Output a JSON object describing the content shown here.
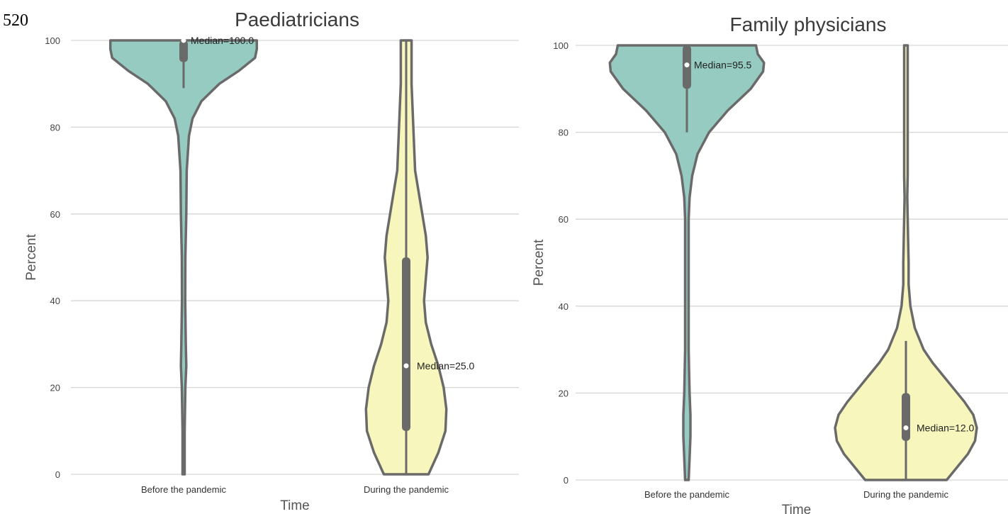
{
  "page_number": "520",
  "colors": {
    "before": "#96cbc2",
    "during": "#f7f7bd",
    "outline": "#6a6a6a",
    "grid": "#d6d6d6"
  },
  "chart_data": [
    {
      "type": "violin",
      "title": "Paediatricians",
      "xlabel": "Time",
      "ylabel": "Percent",
      "ylim": [
        0,
        100
      ],
      "yticks": [
        0,
        20,
        40,
        60,
        80,
        100
      ],
      "grid": true,
      "categories": [
        "Before the pandemic",
        "During the pandemic"
      ],
      "violins": [
        {
          "category": "Before the pandemic",
          "median": 100.0,
          "q1": 95,
          "q3": 100,
          "whisker_low": 89,
          "whisker_high": 100,
          "median_label": "Median=100.0",
          "density": [
            [
              0,
              0.012
            ],
            [
              10,
              0.012
            ],
            [
              20,
              0.02
            ],
            [
              25,
              0.03
            ],
            [
              30,
              0.025
            ],
            [
              40,
              0.018
            ],
            [
              50,
              0.02
            ],
            [
              60,
              0.03
            ],
            [
              70,
              0.035
            ],
            [
              78,
              0.06
            ],
            [
              82,
              0.1
            ],
            [
              86,
              0.2
            ],
            [
              90,
              0.4
            ],
            [
              93,
              0.62
            ],
            [
              96,
              0.8
            ],
            [
              98,
              0.82
            ],
            [
              100,
              0.82
            ]
          ]
        },
        {
          "category": "During the pandemic",
          "median": 25.0,
          "q1": 10,
          "q3": 50,
          "whisker_low": 0,
          "whisker_high": 100,
          "median_label": "Median=25.0",
          "density": [
            [
              0,
              0.25
            ],
            [
              5,
              0.36
            ],
            [
              10,
              0.44
            ],
            [
              15,
              0.45
            ],
            [
              20,
              0.42
            ],
            [
              25,
              0.36
            ],
            [
              30,
              0.28
            ],
            [
              35,
              0.22
            ],
            [
              40,
              0.2
            ],
            [
              45,
              0.22
            ],
            [
              50,
              0.24
            ],
            [
              55,
              0.22
            ],
            [
              60,
              0.18
            ],
            [
              70,
              0.1
            ],
            [
              80,
              0.08
            ],
            [
              90,
              0.06
            ],
            [
              100,
              0.06
            ]
          ]
        }
      ]
    },
    {
      "type": "violin",
      "title": "Family physicians",
      "xlabel": "Time",
      "ylabel": "Percent",
      "ylim": [
        0,
        100
      ],
      "yticks": [
        0,
        20,
        40,
        60,
        80,
        100
      ],
      "grid": true,
      "categories": [
        "Before the pandemic",
        "During the pandemic"
      ],
      "violins": [
        {
          "category": "Before the pandemic",
          "median": 95.5,
          "q1": 90,
          "q3": 100,
          "whisker_low": 80,
          "whisker_high": 100,
          "median_label": "Median=95.5",
          "density": [
            [
              0,
              0.02
            ],
            [
              5,
              0.03
            ],
            [
              10,
              0.04
            ],
            [
              15,
              0.04
            ],
            [
              20,
              0.03
            ],
            [
              25,
              0.025
            ],
            [
              30,
              0.02
            ],
            [
              40,
              0.02
            ],
            [
              50,
              0.02
            ],
            [
              60,
              0.02
            ],
            [
              65,
              0.03
            ],
            [
              70,
              0.06
            ],
            [
              75,
              0.12
            ],
            [
              80,
              0.25
            ],
            [
              85,
              0.46
            ],
            [
              90,
              0.72
            ],
            [
              94,
              0.86
            ],
            [
              96,
              0.87
            ],
            [
              98,
              0.8
            ],
            [
              100,
              0.78
            ]
          ]
        },
        {
          "category": "During the pandemic",
          "median": 12.0,
          "q1": 9,
          "q3": 20,
          "whisker_low": 0,
          "whisker_high": 32,
          "median_label": "Median=12.0",
          "density": [
            [
              0,
              0.46
            ],
            [
              3,
              0.58
            ],
            [
              6,
              0.7
            ],
            [
              9,
              0.78
            ],
            [
              12,
              0.8
            ],
            [
              15,
              0.76
            ],
            [
              18,
              0.66
            ],
            [
              21,
              0.54
            ],
            [
              24,
              0.42
            ],
            [
              27,
              0.3
            ],
            [
              30,
              0.2
            ],
            [
              35,
              0.1
            ],
            [
              40,
              0.05
            ],
            [
              45,
              0.03
            ],
            [
              50,
              0.03
            ],
            [
              55,
              0.025
            ],
            [
              60,
              0.02
            ],
            [
              65,
              0.015
            ],
            [
              70,
              0.02
            ],
            [
              80,
              0.02
            ],
            [
              90,
              0.02
            ],
            [
              100,
              0.02
            ]
          ]
        }
      ]
    }
  ]
}
